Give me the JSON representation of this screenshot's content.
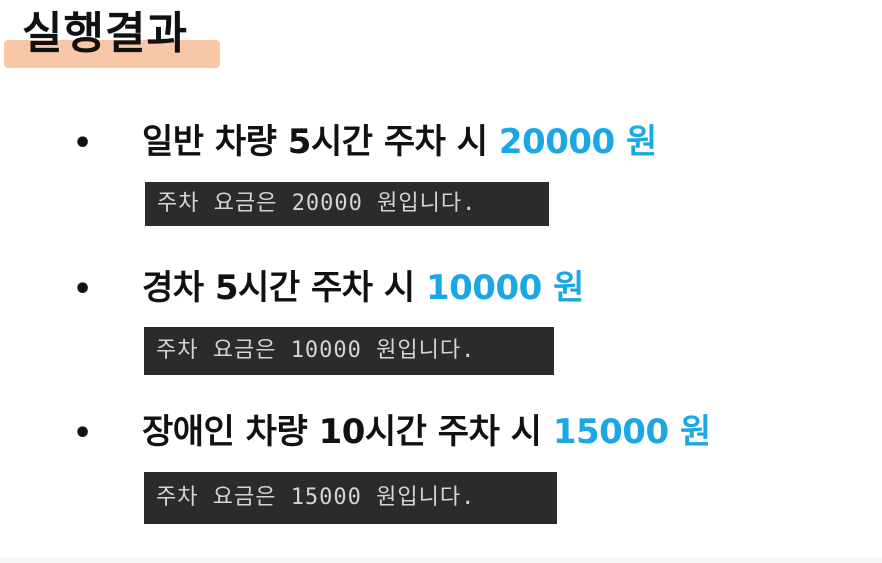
{
  "title": "실행결과",
  "items": [
    {
      "bullet": "•",
      "label": "일반 차량 5시간 주차 시 ",
      "amount": "20000 원",
      "console": "주차 요금은 20000 원입니다."
    },
    {
      "bullet": "•",
      "label": "경차 5시간 주차 시 ",
      "amount": "10000 원",
      "console": "주차 요금은 10000 원입니다."
    },
    {
      "bullet": "•",
      "label": "장애인 차량 10시간 주차 시 ",
      "amount": "15000 원",
      "console": "주차 요금은 15000 원입니다."
    }
  ],
  "colors": {
    "title_highlight": "#f8c7a8",
    "amount_accent": "#1aa7e3",
    "console_bg": "#2b2b2b",
    "console_text": "#d4d4d4"
  }
}
